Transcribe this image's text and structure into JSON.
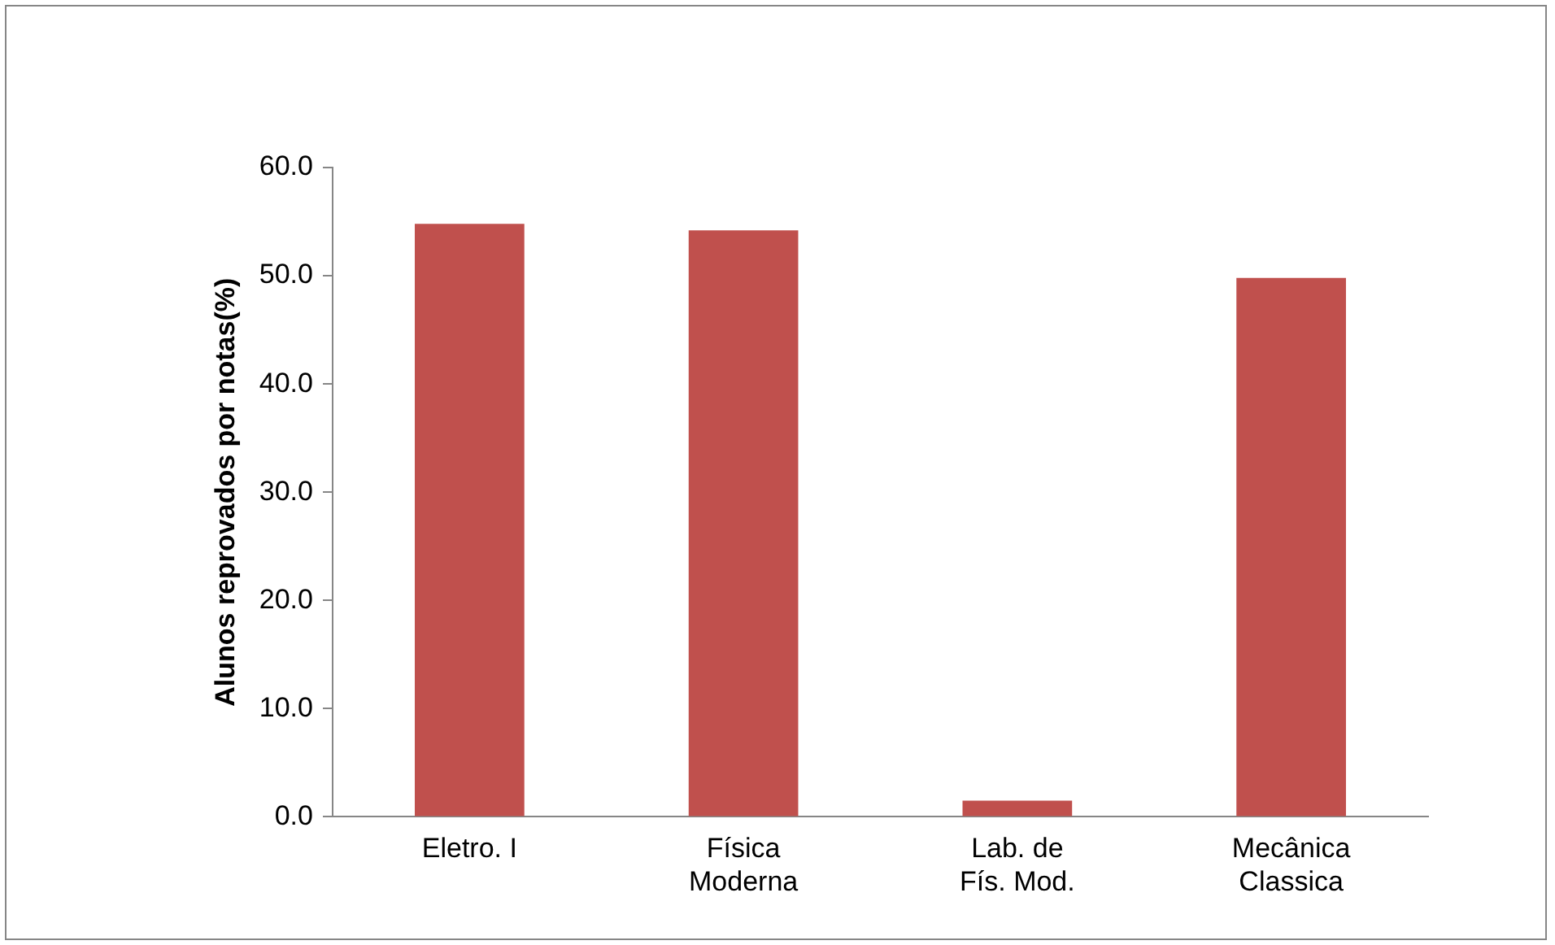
{
  "chart_data": {
    "type": "bar",
    "ylabel": "Alunos reprovados por notas(%)",
    "categories": [
      "Eletro. I",
      "Física\nModerna",
      "Lab. de\nFís. Mod.",
      "Mecânica\nClassica"
    ],
    "values": [
      54.8,
      54.2,
      1.5,
      49.8
    ],
    "color": "#c0504d",
    "ylim": [
      0,
      60
    ],
    "yticks": [
      {
        "value": 0,
        "label": "0.0"
      },
      {
        "value": 10,
        "label": "10.0"
      },
      {
        "value": 20,
        "label": "20.0"
      },
      {
        "value": 30,
        "label": "30.0"
      },
      {
        "value": 40,
        "label": "40.0"
      },
      {
        "value": 50,
        "label": "50.0"
      },
      {
        "value": 60,
        "label": "60.0"
      }
    ],
    "grid": false,
    "legend": false
  }
}
